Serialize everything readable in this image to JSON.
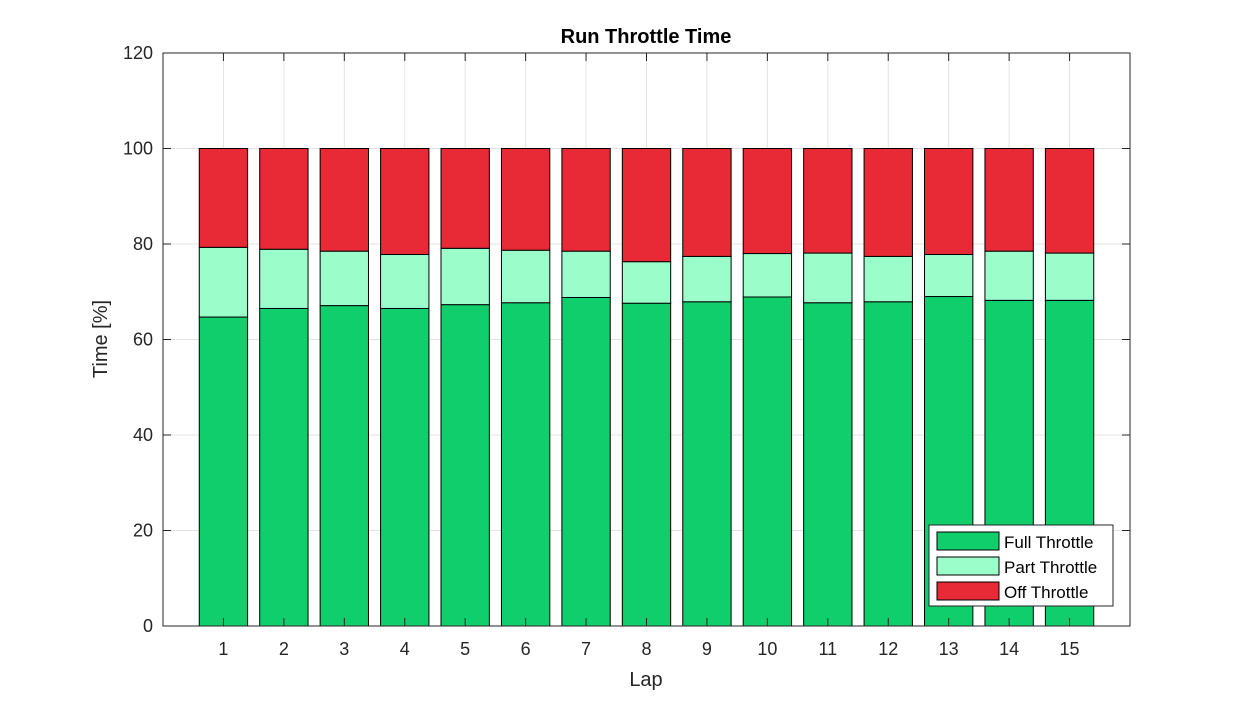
{
  "chart_data": {
    "type": "bar",
    "stacked": true,
    "title": "Run Throttle Time",
    "xlabel": "Lap",
    "ylabel": "Time [%]",
    "ylim": [
      0,
      120
    ],
    "yticks": [
      0,
      20,
      40,
      60,
      80,
      100,
      120
    ],
    "xlim": [
      0,
      16
    ],
    "grid": true,
    "legend_position": "bottom-right",
    "categories": [
      "1",
      "2",
      "3",
      "4",
      "5",
      "6",
      "7",
      "8",
      "9",
      "10",
      "11",
      "12",
      "13",
      "14",
      "15"
    ],
    "series": [
      {
        "name": "Full Throttle",
        "color": "#0fce6b",
        "values": [
          64.7,
          66.5,
          67.1,
          66.5,
          67.3,
          67.7,
          68.8,
          67.6,
          67.9,
          68.9,
          67.7,
          67.9,
          69.0,
          68.2,
          68.2
        ]
      },
      {
        "name": "Part Throttle",
        "color": "#9bfdc9",
        "values": [
          14.6,
          12.4,
          11.4,
          11.3,
          11.8,
          11.0,
          9.7,
          8.7,
          9.5,
          9.1,
          10.4,
          9.5,
          8.8,
          10.3,
          9.9
        ]
      },
      {
        "name": "Off Throttle",
        "color": "#e82a36",
        "values": [
          20.7,
          21.1,
          21.5,
          22.2,
          20.9,
          21.3,
          21.5,
          23.7,
          22.6,
          22.0,
          21.9,
          22.6,
          22.2,
          21.5,
          21.9
        ]
      }
    ]
  }
}
